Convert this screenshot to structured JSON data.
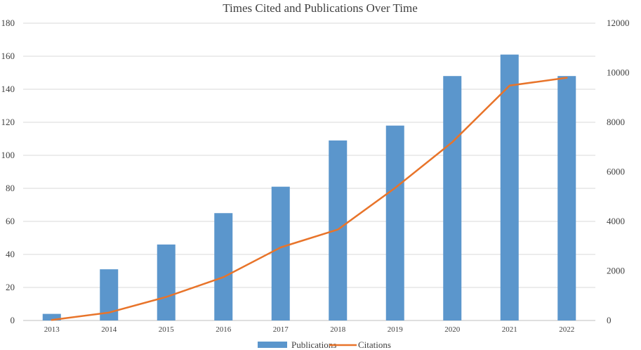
{
  "chart_data": {
    "type": "bar",
    "title": "Times Cited and Publications Over Time",
    "categories": [
      "2013",
      "2014",
      "2015",
      "2016",
      "2017",
      "2018",
      "2019",
      "2020",
      "2021",
      "2022"
    ],
    "series": [
      {
        "name": "Publications",
        "type": "bar",
        "axis": "left",
        "color": "#5b96cc",
        "values": [
          4,
          31,
          46,
          65,
          81,
          109,
          118,
          148,
          161,
          148
        ]
      },
      {
        "name": "Citations",
        "type": "line",
        "axis": "right",
        "color": "#e8742a",
        "values": [
          20,
          320,
          950,
          1750,
          2950,
          3670,
          5350,
          7200,
          9480,
          9800
        ]
      }
    ],
    "y_left": {
      "min": 0,
      "max": 180,
      "ticks": [
        "0",
        "20",
        "40",
        "60",
        "80",
        "100",
        "120",
        "140",
        "160",
        "180"
      ]
    },
    "y_right": {
      "min": 0,
      "max": 12000,
      "ticks": [
        "0",
        "2000",
        "4000",
        "6000",
        "8000",
        "10000",
        "12000"
      ]
    },
    "grid": true,
    "legend_position": "bottom"
  }
}
